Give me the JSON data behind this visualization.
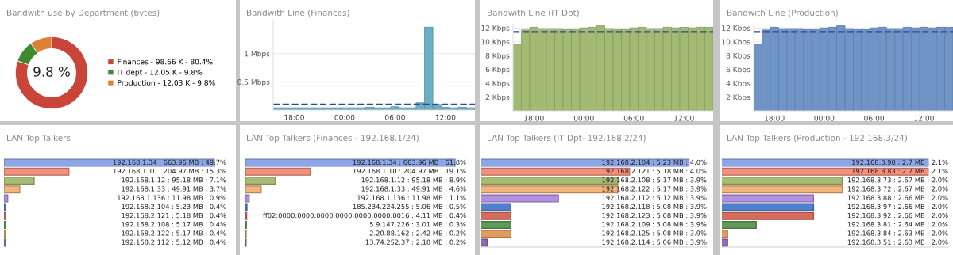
{
  "chart_data": [
    {
      "type": "donut",
      "title": "Bandwith use by Department (bytes)",
      "categories": [
        "Finances - 98.66 K - 80.4%",
        "IT dept - 12.05 K - 9.8%",
        "Production - 12.03 K - 9.8%"
      ],
      "values": [
        80.4,
        9.8,
        9.8
      ],
      "colors": [
        "#c9453a",
        "#3d8a30",
        "#de8135"
      ],
      "annotations": [
        "9.8 %"
      ],
      "legend": "right"
    },
    {
      "type": "bar",
      "title": "Bandwith Line (Finances)",
      "categories": [
        null,
        null,
        "18:00",
        null,
        null,
        null,
        null,
        null,
        "00:00",
        null,
        null,
        null,
        null,
        null,
        "06:00",
        null,
        null,
        null,
        null,
        null,
        "12:00",
        null,
        null,
        null
      ],
      "values": [
        0.04,
        0.04,
        0.04,
        0.04,
        0.04,
        0.04,
        0.04,
        0.04,
        0.04,
        0.04,
        0.04,
        0.05,
        0.04,
        0.04,
        0.06,
        0.04,
        0.04,
        0.13,
        1.47,
        0.1,
        0.05,
        0.04,
        0.05,
        0.04
      ],
      "color": "#6aaec4",
      "ylim": [
        0,
        1.6
      ],
      "yticks": [
        {
          "value": 0.5,
          "label": "0.5 Mbps"
        },
        {
          "value": 1,
          "label": "1 Mbps"
        }
      ],
      "grid": "y",
      "ref_lines": [
        {
          "axis": "y",
          "value": 0.1,
          "color": "#2e4a8e",
          "line_style": "dashed"
        }
      ]
    },
    {
      "type": "bar",
      "title": "Bandwith Line (IT Dpt)",
      "categories": [
        null,
        null,
        "18:00",
        null,
        null,
        null,
        null,
        null,
        "00:00",
        null,
        null,
        null,
        null,
        null,
        "06:00",
        null,
        null,
        null,
        null,
        null,
        "12:00",
        null,
        null,
        null
      ],
      "values": [
        9.6,
        11.7,
        12.1,
        11.9,
        11.9,
        11.9,
        11.8,
        11.8,
        12.0,
        12.1,
        12.3,
        11.9,
        11.8,
        11.8,
        12.0,
        12.1,
        11.9,
        11.9,
        12.1,
        12.0,
        12.1,
        12.0,
        12.1,
        12.1
      ],
      "color": "#a3ba72",
      "ylim": [
        0,
        12.6
      ],
      "yticks": [
        {
          "value": 2,
          "label": "2 Kbps"
        },
        {
          "value": 4,
          "label": "4 Kbps"
        },
        {
          "value": 6,
          "label": "6 Kbps"
        },
        {
          "value": 8,
          "label": "8 Kbps"
        },
        {
          "value": 10,
          "label": "10 Kbps"
        },
        {
          "value": 12,
          "label": "12 Kbps"
        }
      ],
      "grid": "y",
      "ref_lines": [
        {
          "axis": "y",
          "value": 11.4,
          "color": "#2e4a8e",
          "line_style": "dashed"
        }
      ]
    },
    {
      "type": "bar",
      "title": "Bandwith Line (Production)",
      "categories": [
        null,
        null,
        "18:00",
        null,
        null,
        null,
        null,
        null,
        "00:00",
        null,
        null,
        null,
        null,
        null,
        "06:00",
        null,
        null,
        null,
        null,
        null,
        "12:00",
        null,
        null,
        null
      ],
      "values": [
        9.6,
        11.7,
        12.1,
        11.9,
        11.9,
        11.9,
        11.8,
        11.8,
        12.0,
        12.1,
        12.3,
        11.9,
        11.8,
        11.8,
        12.0,
        12.1,
        11.9,
        11.9,
        12.1,
        12.0,
        12.1,
        12.0,
        12.1,
        12.1
      ],
      "color": "#7094c6",
      "ylim": [
        0,
        12.6
      ],
      "yticks": [
        {
          "value": 2,
          "label": "2 Kbps"
        },
        {
          "value": 4,
          "label": "4 Kbps"
        },
        {
          "value": 6,
          "label": "6 Kbps"
        },
        {
          "value": 8,
          "label": "8 Kbps"
        },
        {
          "value": 10,
          "label": "10 Kbps"
        },
        {
          "value": 12,
          "label": "12 Kbps"
        }
      ],
      "grid": "y",
      "ref_lines": [
        {
          "axis": "y",
          "value": 11.4,
          "color": "#2e4a8e",
          "line_style": "dashed"
        }
      ]
    },
    {
      "type": "bar",
      "orientation": "horizontal",
      "title": "LAN Top Talkers",
      "categories": [
        null,
        null,
        null,
        null,
        null,
        null,
        null,
        null,
        null,
        null
      ],
      "values": [
        663.96,
        204.97,
        95.18,
        49.91,
        11.98,
        5.23,
        5.18,
        5.17,
        5.17,
        5.12
      ],
      "colors": [
        "#8ba6e9",
        "#f4907e",
        "#a8bb72",
        "#f1b47c",
        "#b28fe0",
        "#4f7fcf",
        "#d66a5c",
        "#5f9a57",
        "#e39a5d",
        "#8e6cb8"
      ],
      "value_labels": [
        "192.168.1.34 : 663.96 MB : 49.7%",
        "192.168.1.10 : 204.97 MB : 15.3%",
        "192.168.1.12 : 95.18 MB : 7.1%",
        "192.168.1.33 : 49.91 MB : 3.7%",
        "192.168.1.136 : 11.98 MB : 0.9%",
        "192.168.2.104 : 5.23 MB : 0.4%",
        "192.168.2.121 : 5.18 MB : 0.4%",
        "192.168.2.108 : 5.17 MB : 0.4%",
        "192.168.2.122 : 5.17 MB : 0.4%",
        "192.168.2.112 : 5.12 MB : 0.4%"
      ]
    },
    {
      "type": "bar",
      "orientation": "horizontal",
      "title": "LAN Top Talkers (Finances - 192.168.1/24)",
      "categories": [
        null,
        null,
        null,
        null,
        null,
        null,
        null,
        null,
        null,
        null
      ],
      "values": [
        663.96,
        204.97,
        95.18,
        49.91,
        11.98,
        5.06,
        4.11,
        3.01,
        2.42,
        2.18
      ],
      "colors": [
        "#8ba6e9",
        "#f4907e",
        "#a8bb72",
        "#f1b47c",
        "#b28fe0",
        "#4f7fcf",
        "#d66a5c",
        "#5f9a57",
        "#e39a5d",
        "#8e6cb8"
      ],
      "value_labels": [
        "192.168.1.34 : 663.96 MB : 61.8%",
        "192.168.1.10 : 204.97 MB : 19.1%",
        "192.168.1.12 : 95.18 MB : 8.9%",
        "192.168.1.33 : 49.91 MB : 4.6%",
        "192.168.1.136 : 11.98 MB : 1.1%",
        "185.234.224.255 : 5.06 MB : 0.5%",
        "ff02:0000:0000:0000:0000:0000:0000:0016 : 4.11 MB : 0.4%",
        "5.9.147.226 : 3.01 MB : 0.3%",
        "2.20.88.162 : 2.42 MB : 0.2%",
        "13.74.252.37 : 2.18 MB : 0.2%"
      ]
    },
    {
      "type": "bar",
      "orientation": "horizontal",
      "title": "LAN Top Talkers (IT Dpt- 192.168.2/24)",
      "categories": [
        null,
        null,
        null,
        null,
        null,
        null,
        null,
        null,
        null,
        null
      ],
      "values": [
        5.23,
        5.18,
        5.17,
        5.17,
        5.12,
        5.08,
        5.08,
        5.08,
        5.08,
        5.06
      ],
      "xlim": [
        5.055,
        5.245
      ],
      "colors": [
        "#8ba6e9",
        "#f4907e",
        "#a8bb72",
        "#f1b47c",
        "#b28fe0",
        "#4f7fcf",
        "#d66a5c",
        "#5f9a57",
        "#e39a5d",
        "#8e6cb8"
      ],
      "value_labels": [
        "192.168.2.104 : 5.23 MB : 4.0%",
        "192.168.2.121 : 5.18 MB : 4.0%",
        "192.168.2.108 : 5.17 MB : 3.9%",
        "192.168.2.122 : 5.17 MB : 3.9%",
        "192.168.2.112 : 5.12 MB : 3.9%",
        "192.168.2.118 : 5.08 MB : 3.9%",
        "192.168.2.123 : 5.08 MB : 3.9%",
        "192.168.2.109 : 5.08 MB : 3.9%",
        "192.168.2.125 : 5.08 MB : 3.9%",
        "192.168.2.114 : 5.06 MB : 3.9%"
      ]
    },
    {
      "type": "bar",
      "orientation": "horizontal",
      "title": "LAN Top Talkers (Production - 192.168.3/24)",
      "categories": [
        null,
        null,
        null,
        null,
        null,
        null,
        null,
        null,
        null,
        null
      ],
      "values": [
        2.7,
        2.7,
        2.67,
        2.67,
        2.66,
        2.66,
        2.66,
        2.64,
        2.63,
        2.63
      ],
      "xlim": [
        2.628,
        2.707
      ],
      "colors": [
        "#8ba6e9",
        "#f4907e",
        "#a8bb72",
        "#f1b47c",
        "#b28fe0",
        "#4f7fcf",
        "#d66a5c",
        "#5f9a57",
        "#e39a5d",
        "#8e6cb8"
      ],
      "value_labels": [
        "192.168.3.98 : 2.7 MB : 2.1%",
        "192.168.3.83 : 2.7 MB : 2.1%",
        "192.168.3.73 : 2.67 MB : 2.0%",
        "192.168.3.72 : 2.67 MB : 2.0%",
        "192.168.3.88 : 2.66 MB : 2.0%",
        "192.168.3.97 : 2.66 MB : 2.0%",
        "192.168.3.92 : 2.66 MB : 2.0%",
        "192.168.3.81 : 2.64 MB : 2.0%",
        "192.168.3.84 : 2.63 MB : 2.0%",
        "192.168.3.51 : 2.63 MB : 2.0%"
      ]
    }
  ]
}
